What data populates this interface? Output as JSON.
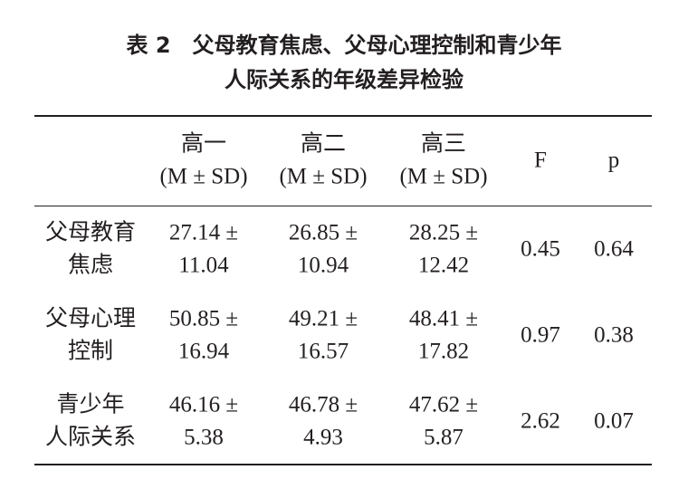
{
  "title": [
    "表 2　父母教育焦虑、父母心理控制和青少年",
    "人际关系的年级差异检验"
  ],
  "table": {
    "header": [
      [
        "高一",
        "(M ± SD)"
      ],
      [
        "高二",
        "(M ± SD)"
      ],
      [
        "高三",
        "(M ± SD)"
      ],
      [
        "F"
      ],
      [
        "p"
      ]
    ],
    "rows": [
      {
        "label": [
          "父母教育",
          "焦虑"
        ],
        "cells": [
          [
            "27.14 ±",
            "11.04"
          ],
          [
            "26.85 ±",
            "10.94"
          ],
          [
            "28.25 ±",
            "12.42"
          ],
          [
            "0.45"
          ],
          [
            "0.64"
          ]
        ]
      },
      {
        "label": [
          "父母心理",
          "控制"
        ],
        "cells": [
          [
            "50.85 ±",
            "16.94"
          ],
          [
            "49.21 ±",
            "16.57"
          ],
          [
            "48.41 ±",
            "17.82"
          ],
          [
            "0.97"
          ],
          [
            "0.38"
          ]
        ]
      },
      {
        "label": [
          "青少年",
          "人际关系"
        ],
        "cells": [
          [
            "46.16 ±",
            "5.38"
          ],
          [
            "46.78 ±",
            "4.93"
          ],
          [
            "47.62 ±",
            "5.87"
          ],
          [
            "2.62"
          ],
          [
            "0.07"
          ]
        ]
      }
    ]
  }
}
